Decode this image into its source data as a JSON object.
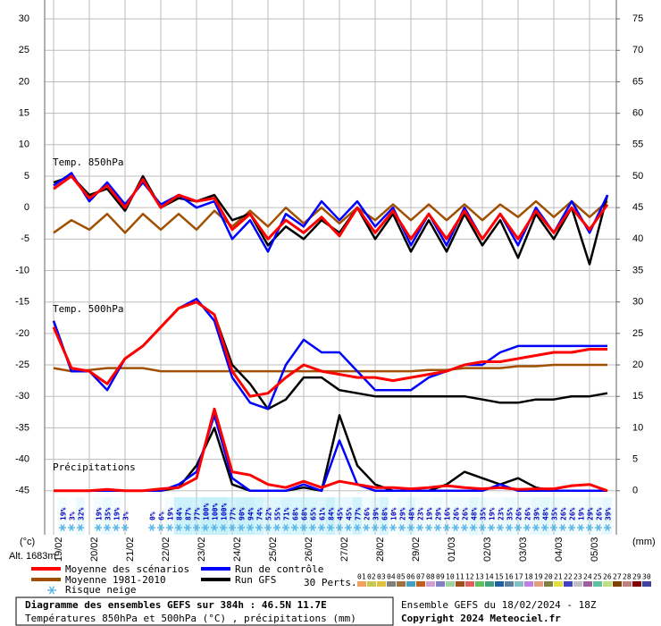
{
  "chart_data": {
    "type": "line",
    "xlim": [
      0,
      384
    ],
    "xticks": [
      {
        "value": 6,
        "label": "19/02"
      },
      {
        "value": 30,
        "label": "20/02"
      },
      {
        "value": 54,
        "label": "21/02"
      },
      {
        "value": 78,
        "label": "22/02"
      },
      {
        "value": 102,
        "label": "23/02"
      },
      {
        "value": 126,
        "label": "24/02"
      },
      {
        "value": 150,
        "label": "25/02"
      },
      {
        "value": 174,
        "label": "26/02"
      },
      {
        "value": 198,
        "label": "27/02"
      },
      {
        "value": 222,
        "label": "28/02"
      },
      {
        "value": 246,
        "label": "29/02"
      },
      {
        "value": 270,
        "label": "01/03"
      },
      {
        "value": 294,
        "label": "02/03"
      },
      {
        "value": 318,
        "label": "03/03"
      },
      {
        "value": 342,
        "label": "04/03"
      },
      {
        "value": 366,
        "label": "05/03"
      }
    ],
    "ylim": [
      -52,
      33
    ],
    "yticks": [
      -45,
      -40,
      -35,
      -30,
      -25,
      -20,
      -15,
      -10,
      -5,
      0,
      5,
      10,
      15,
      20,
      25,
      30
    ],
    "y2lim": [
      -7,
      78
    ],
    "y2ticks": [
      0,
      5,
      10,
      15,
      20,
      25,
      30,
      35,
      40,
      45,
      50,
      55,
      60,
      65,
      70,
      75
    ],
    "ylabel": "(°c)",
    "y2label": "(mm)",
    "grid": true,
    "altitude": "Alt. 1683m",
    "x": [
      6,
      18,
      30,
      42,
      54,
      66,
      78,
      90,
      102,
      114,
      126,
      138,
      150,
      162,
      174,
      186,
      198,
      210,
      222,
      234,
      246,
      258,
      270,
      282,
      294,
      306,
      318,
      330,
      342,
      354,
      366,
      378
    ],
    "series": [
      {
        "name": "Moyenne des scénarios",
        "color": "#ff0000"
      },
      {
        "name": "Moyenne 1981-2010",
        "color": "#a05000"
      },
      {
        "name": "Run de contrôle",
        "color": "#0000ff"
      },
      {
        "name": "Run GFS",
        "color": "#000000"
      }
    ],
    "panels": [
      {
        "label": "Temp. 850hPa",
        "axis": "y",
        "lines": [
          [
            3,
            5,
            1.5,
            3.5,
            0,
            4.5,
            0,
            2,
            1,
            1.5,
            -3.5,
            -1,
            -5,
            -2,
            -4,
            -1.5,
            -4.5,
            0,
            -4,
            -0.5,
            -5,
            -1,
            -5,
            -0.5,
            -5,
            -1,
            -5,
            -0.5,
            -4,
            0,
            -3.5,
            0.5
          ],
          [
            -4,
            -2,
            -3.5,
            -1,
            -4,
            -1,
            -3.5,
            -1,
            -3.5,
            -0.5,
            -3,
            -0.5,
            -3,
            0,
            -2.5,
            0,
            -2.5,
            0,
            -2,
            0.5,
            -2,
            0.5,
            -2,
            0.5,
            -2,
            0.5,
            -1.5,
            1,
            -1.5,
            1,
            -1.5,
            1
          ],
          [
            3.5,
            5.5,
            1,
            4,
            0.5,
            4,
            0.5,
            2,
            0,
            1,
            -5,
            -2,
            -7,
            -1,
            -3,
            1,
            -2,
            1,
            -3,
            0,
            -6,
            -1,
            -6,
            0,
            -5,
            -1,
            -6,
            0,
            -4,
            1,
            -4,
            2
          ],
          [
            4,
            5,
            2,
            3,
            -0.5,
            5,
            0,
            1.5,
            1,
            2,
            -2,
            -1,
            -6,
            -3,
            -5,
            -2,
            -4,
            0,
            -5,
            -1,
            -7,
            -2,
            -7,
            -1,
            -6,
            -2,
            -8,
            -1,
            -5,
            0,
            -9,
            2
          ]
        ]
      },
      {
        "label": "Temp. 500hPa",
        "axis": "y",
        "lines": [
          [
            -19,
            -25.5,
            -26,
            -28,
            -24,
            -22,
            -19,
            -16,
            -15,
            -17,
            -26,
            -30,
            -29.5,
            -27,
            -25,
            -26,
            -26.5,
            -27,
            -27,
            -27.5,
            -27,
            -26.5,
            -26,
            -25,
            -24.5,
            -24.5,
            -24,
            -23.5,
            -23,
            -23,
            -22.5,
            -22.5
          ],
          [
            -25.5,
            -26,
            -25.8,
            -25.5,
            -25.5,
            -25.5,
            -26,
            -26,
            -26,
            -26,
            -26,
            -26,
            -26,
            -26,
            -26,
            -26,
            -26,
            -26,
            -26,
            -26,
            -26,
            -25.8,
            -25.8,
            -25.5,
            -25.5,
            -25.5,
            -25.2,
            -25.2,
            -25,
            -25,
            -25,
            -25
          ],
          [
            -18,
            -26,
            -26,
            -29,
            -24,
            -22,
            -19,
            -16,
            -14.5,
            -18,
            -27,
            -31,
            -32,
            -25,
            -21,
            -23,
            -23,
            -26,
            -29,
            -29,
            -29,
            -27,
            -26,
            -25,
            -25,
            -23,
            -22,
            -22,
            -22,
            -22,
            -22,
            -22
          ],
          [
            -18,
            -26,
            -26,
            -28,
            -24,
            -22,
            -19,
            -16,
            -15,
            -17,
            -25,
            -28,
            -32,
            -30.5,
            -27,
            -27,
            -29,
            -29.5,
            -30,
            -30,
            -30,
            -30,
            -30,
            -30,
            -30.5,
            -31,
            -31,
            -30.5,
            -30.5,
            -30,
            -30,
            -29.5
          ]
        ]
      },
      {
        "label": "Précipitations",
        "axis": "y2",
        "lines": [
          [
            0,
            0,
            0,
            0.2,
            0,
            0,
            0.3,
            0.5,
            2,
            13,
            3,
            2.5,
            1,
            0.5,
            1.5,
            0.5,
            1.5,
            1,
            0.5,
            0.5,
            0.3,
            0.5,
            0.8,
            0.5,
            0.3,
            0.5,
            0.2,
            0.3,
            0.3,
            0.8,
            1,
            0
          ],
          null,
          [
            0,
            0,
            0,
            0,
            0,
            0,
            0,
            1,
            3,
            12,
            2,
            0,
            0,
            0,
            1,
            0,
            8,
            1,
            0,
            0,
            0,
            0,
            0,
            0,
            0,
            1,
            0,
            0,
            0,
            0,
            0,
            0
          ],
          [
            0,
            0,
            0,
            0,
            0,
            0,
            0,
            0.5,
            4,
            10,
            1,
            0,
            0,
            0,
            0.5,
            0,
            12,
            4,
            1,
            0,
            0,
            0,
            1,
            3,
            2,
            1,
            2,
            0.5,
            0,
            0,
            0,
            0
          ]
        ]
      }
    ],
    "snow_risk": {
      "label": "Risque neige",
      "x": [
        12,
        18,
        24,
        30,
        36,
        42,
        48,
        54,
        60,
        66,
        72,
        78,
        84,
        90,
        96,
        102,
        108,
        114,
        120,
        126,
        132,
        138,
        144,
        150,
        156,
        162,
        168,
        174,
        180,
        186,
        192,
        198,
        204,
        210,
        216,
        222,
        228,
        234,
        240,
        246,
        252,
        258,
        264,
        270,
        276,
        282,
        288,
        294,
        300,
        306,
        312,
        318,
        324,
        330,
        336,
        342,
        348,
        354,
        360,
        366,
        372,
        378
      ],
      "values": [
        19,
        3,
        32,
        null,
        19,
        35,
        19,
        3,
        null,
        null,
        0,
        6,
        19,
        84,
        87,
        77,
        100,
        100,
        100,
        77,
        90,
        94,
        74,
        52,
        55,
        71,
        68,
        68,
        65,
        61,
        84,
        45,
        45,
        77,
        26,
        39,
        68,
        10,
        29,
        48,
        23,
        19,
        29,
        16,
        26,
        26,
        48,
        35,
        19,
        23,
        35,
        26,
        26,
        39,
        48,
        35,
        26,
        26,
        19,
        29,
        26,
        39
      ],
      "value_labels": [
        "19%",
        "3%",
        "32%",
        null,
        "19%",
        "35%",
        "19%",
        "3%",
        null,
        null,
        "0%",
        "6%",
        "19%",
        "84%",
        "87%",
        "77%",
        "100%",
        "100%",
        "100%",
        "77%",
        "90%",
        "94%",
        "74%",
        "52%",
        "55%",
        "71%",
        "68%",
        "68%",
        "65%",
        "61%",
        "84%",
        "45%",
        "45%",
        "77%",
        "26%",
        "39%",
        "68%",
        "10%",
        "29%",
        "48%",
        "23%",
        "19%",
        "29%",
        "16%",
        "26%",
        "26%",
        "48%",
        "35%",
        "19%",
        "23%",
        "35%",
        "26%",
        "26%",
        "39%",
        "48%",
        "35%",
        "26%",
        "26%",
        "19%",
        "29%",
        "26%",
        "39%"
      ]
    },
    "perturbations": {
      "label": "30 Perts.",
      "names": [
        "01",
        "02",
        "03",
        "04",
        "05",
        "06",
        "07",
        "08",
        "09",
        "10",
        "11",
        "12",
        "13",
        "14",
        "15",
        "16",
        "17",
        "18",
        "19",
        "20",
        "21",
        "22",
        "23",
        "24",
        "25",
        "26",
        "27",
        "28",
        "29",
        "30"
      ],
      "colors": [
        "#f0a060",
        "#c8c850",
        "#e0c040",
        "#808080",
        "#a07040",
        "#40a0c0",
        "#c06020",
        "#d0a0d0",
        "#8080c0",
        "#a0d0a0",
        "#a05020",
        "#e06060",
        "#60c060",
        "#40a080",
        "#2060a0",
        "#6080a0",
        "#80c0c0",
        "#c080e0",
        "#e0a080",
        "#808040",
        "#e0e040",
        "#4040c0",
        "#c0c0c0",
        "#a060a0",
        "#60c0a0",
        "#c0e080",
        "#804000",
        "#c08080",
        "#800000",
        "#4040a0"
      ]
    },
    "title": "Diagramme des ensembles GEFS sur 384h : 46.5N 11.7E",
    "subtitle": "Températures 850hPa et 500hPa (°C) , précipitations (mm)",
    "run": "Ensemble GEFS du 18/02/2024 - 18Z",
    "copyright": "Copyright 2024 Meteociel.fr"
  }
}
